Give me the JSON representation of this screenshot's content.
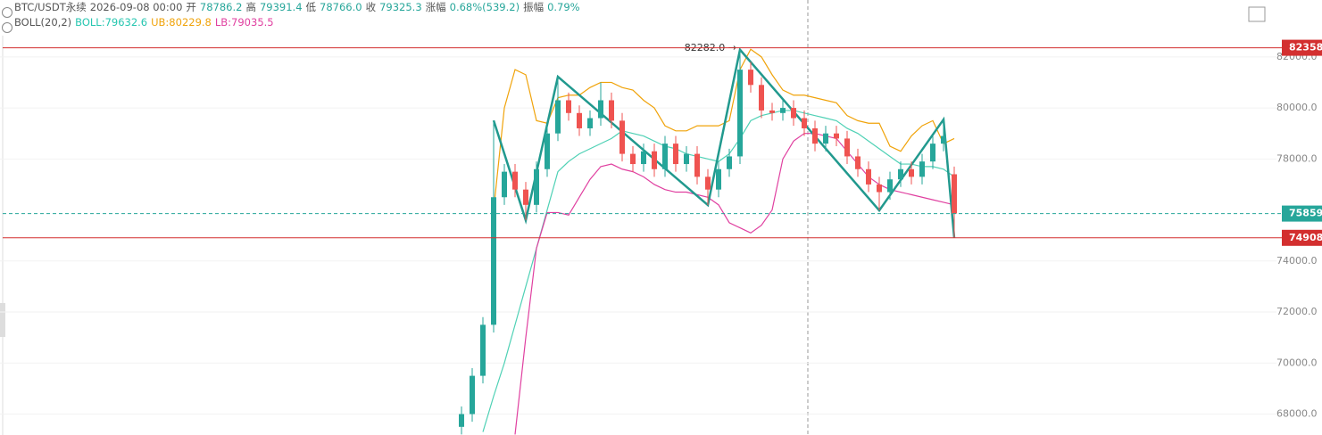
{
  "chart_data": {
    "type": "candlestick",
    "symbol": "BTC/USDT永续",
    "datetime": "2026-09-08 00:00",
    "ohlc_labels": [
      {
        "name": "开",
        "value": "78786.2"
      },
      {
        "name": "高",
        "value": "79391.4"
      },
      {
        "name": "低",
        "value": "78766.0"
      },
      {
        "name": "收",
        "value": "79325.3"
      },
      {
        "name": "涨幅",
        "value": "0.68%(539.2)"
      },
      {
        "name": "振幅",
        "value": "0.79%"
      }
    ],
    "indicator": {
      "name": "BOLL(20,2)",
      "labels": [
        {
          "text": "BOLL:79632.6",
          "color": "#26c6b0"
        },
        {
          "text": "UB:80229.8",
          "color": "#f0a30a"
        },
        {
          "text": "LB:79035.5",
          "color": "#e040a0"
        }
      ]
    },
    "ylim": [
      67180,
      84230
    ],
    "yticks": [
      {
        "value": 68000,
        "label": "68000.0"
      },
      {
        "value": 70000,
        "label": "70000.0"
      },
      {
        "value": 72000,
        "label": "72000.0"
      },
      {
        "value": 74000,
        "label": "74000.0"
      },
      {
        "value": 78000,
        "label": "78000.0"
      },
      {
        "value": 80000,
        "label": "80000.0"
      },
      {
        "value": 82000,
        "label": "82000.0"
      }
    ],
    "grid": true,
    "up_color": "#26a69a",
    "down_color": "#ef5350",
    "open": [
      67500,
      68000,
      69500,
      71500,
      76500,
      77500,
      76800,
      76200,
      77600,
      79000,
      80300,
      79800,
      79200,
      79600,
      80300,
      79500,
      78200,
      77800,
      78300,
      77600,
      78600,
      77800,
      78200,
      77300,
      76800,
      77600,
      78100,
      81500,
      80900,
      79900,
      79800,
      80000,
      79600,
      79200,
      78600,
      79000,
      78800,
      78100,
      77600,
      77000,
      76700,
      77200,
      77600,
      77300,
      77900,
      78600,
      77400
    ],
    "high": [
      68300,
      69800,
      71800,
      79510,
      77800,
      77800,
      77100,
      77900,
      79300,
      81223,
      80600,
      80100,
      79900,
      81000,
      80600,
      79800,
      78500,
      78600,
      78600,
      78900,
      78900,
      78500,
      78500,
      77600,
      77900,
      78400,
      82282,
      81800,
      81200,
      80200,
      80300,
      80300,
      79900,
      79500,
      79300,
      79300,
      79100,
      78400,
      77900,
      77300,
      77500,
      77900,
      77900,
      78200,
      78900,
      79546,
      77700
    ],
    "low": [
      67200,
      67700,
      69200,
      71200,
      76200,
      76500,
      75598,
      75900,
      77300,
      78700,
      79500,
      78900,
      78900,
      79300,
      79200,
      77900,
      77500,
      77500,
      77300,
      77300,
      77500,
      77500,
      77000,
      76192,
      76500,
      77300,
      77800,
      80600,
      79600,
      79500,
      79500,
      79300,
      78900,
      78300,
      78300,
      78500,
      77800,
      77300,
      76700,
      75983,
      76400,
      76900,
      77000,
      77000,
      77600,
      78300,
      74908
    ],
    "close": [
      68000,
      69500,
      71500,
      76500,
      77500,
      76800,
      76200,
      77600,
      79000,
      80300,
      79800,
      79200,
      79600,
      80300,
      79500,
      78200,
      77800,
      78300,
      77600,
      78600,
      77800,
      78200,
      77300,
      76800,
      77600,
      78100,
      81500,
      80900,
      79900,
      79800,
      80000,
      79600,
      79200,
      78600,
      79000,
      78800,
      78100,
      77600,
      77000,
      76700,
      77200,
      77600,
      77300,
      77900,
      78600,
      78900,
      75859
    ],
    "series": [
      {
        "name": "UB",
        "color": "#f0a30a",
        "values": [
          null,
          null,
          null,
          76000,
          80000,
          81500,
          81300,
          79500,
          79400,
          80400,
          80500,
          80500,
          80800,
          81000,
          81000,
          80800,
          80700,
          80300,
          80000,
          79300,
          79100,
          79100,
          79300,
          79300,
          79300,
          79500,
          81500,
          82300,
          82000,
          81300,
          80700,
          80500,
          80500,
          80400,
          80300,
          80200,
          79700,
          79500,
          79400,
          79400,
          78500,
          78300,
          78900,
          79300,
          79500,
          78600,
          78800
        ]
      },
      {
        "name": "BOLL",
        "color": "#4fd1b5",
        "values": [
          null,
          null,
          67300,
          68700,
          70000,
          71500,
          73000,
          74500,
          76000,
          77500,
          77900,
          78200,
          78400,
          78600,
          78800,
          79100,
          79000,
          78900,
          78700,
          78500,
          78400,
          78200,
          78100,
          78000,
          77900,
          78200,
          78800,
          79500,
          79700,
          79800,
          79900,
          79900,
          79800,
          79700,
          79600,
          79500,
          79200,
          79000,
          78700,
          78400,
          78100,
          77800,
          77800,
          77700,
          77700,
          77600,
          77300
        ]
      },
      {
        "name": "LB",
        "color": "#e040a0",
        "values": [
          null,
          null,
          null,
          null,
          null,
          67200,
          71000,
          74500,
          75900,
          75900,
          75800,
          76500,
          77200,
          77700,
          77800,
          77600,
          77500,
          77300,
          77000,
          76800,
          76700,
          76700,
          76600,
          76500,
          76200,
          75500,
          75300,
          75100,
          75400,
          76000,
          78000,
          78700,
          79000,
          79000,
          78900,
          78800,
          78300,
          77800,
          77300,
          77000,
          76800,
          76700,
          76600,
          76500,
          76400,
          76300,
          76200
        ]
      }
    ],
    "zigzag": {
      "color": "#21998e",
      "x": [
        3,
        6,
        9,
        23,
        26,
        39,
        45,
        46
      ],
      "values": [
        79510,
        75598,
        81223,
        76192,
        82282,
        75983,
        79546,
        74908
      ]
    },
    "peak_annotation": "82282.0 →",
    "price_lines": [
      {
        "value": 82358,
        "label": "82358.0",
        "color": "#d32f2f",
        "style": "solid"
      },
      {
        "value": 75859,
        "label": "75859.0",
        "color": "#26a69a",
        "style": "dashed"
      },
      {
        "value": 74908,
        "label": "74908.0",
        "color": "#d32f2f",
        "style": "solid"
      }
    ]
  }
}
